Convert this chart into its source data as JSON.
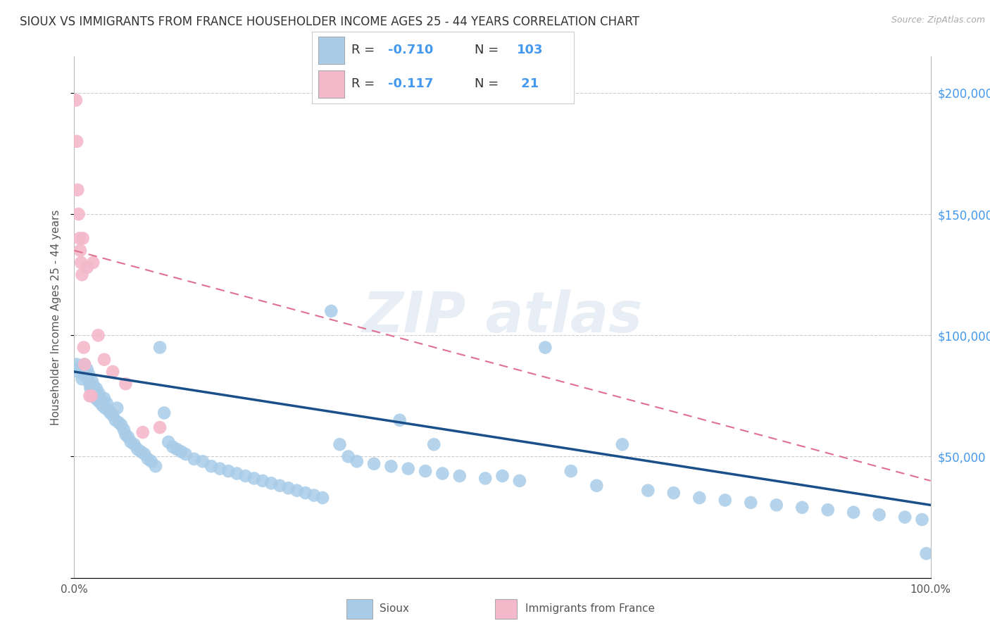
{
  "title": "SIOUX VS IMMIGRANTS FROM FRANCE HOUSEHOLDER INCOME AGES 25 - 44 YEARS CORRELATION CHART",
  "source": "Source: ZipAtlas.com",
  "ylabel": "Householder Income Ages 25 - 44 years",
  "xlim": [
    0.0,
    100.0
  ],
  "ylim": [
    0,
    215000
  ],
  "yticks": [
    0,
    50000,
    100000,
    150000,
    200000
  ],
  "ytick_labels": [
    "",
    "$50,000",
    "$100,000",
    "$150,000",
    "$200,000"
  ],
  "blue_scatter": "#a8cce8",
  "pink_scatter": "#f4b8cb",
  "blue_line": "#1a4f8a",
  "pink_line": "#e07090",
  "blue_legend": "#a8cce8",
  "pink_legend": "#f4b8cb",
  "watermark_color": "#e8eef5",
  "sioux_x": [
    0.3,
    0.5,
    0.7,
    0.9,
    1.0,
    1.1,
    1.2,
    1.3,
    1.4,
    1.5,
    1.6,
    1.7,
    1.8,
    1.9,
    2.0,
    2.1,
    2.2,
    2.3,
    2.4,
    2.5,
    2.6,
    2.7,
    2.8,
    2.9,
    3.0,
    3.1,
    3.2,
    3.3,
    3.5,
    3.6,
    3.8,
    4.0,
    4.2,
    4.5,
    4.8,
    5.0,
    5.2,
    5.5,
    5.8,
    6.0,
    6.3,
    6.6,
    7.0,
    7.4,
    7.8,
    8.2,
    8.6,
    9.0,
    9.5,
    10.0,
    10.5,
    11.0,
    11.5,
    12.0,
    12.5,
    13.0,
    14.0,
    15.0,
    16.0,
    17.0,
    18.0,
    19.0,
    20.0,
    21.0,
    22.0,
    23.0,
    24.0,
    25.0,
    26.0,
    27.0,
    28.0,
    29.0,
    30.0,
    31.0,
    32.0,
    33.0,
    35.0,
    37.0,
    39.0,
    41.0,
    43.0,
    45.0,
    48.0,
    50.0,
    52.0,
    55.0,
    58.0,
    61.0,
    64.0,
    67.0,
    70.0,
    73.0,
    76.0,
    79.0,
    82.0,
    85.0,
    88.0,
    91.0,
    94.0,
    97.0,
    99.0,
    99.5,
    38.0,
    42.0
  ],
  "sioux_y": [
    88000,
    85000,
    87000,
    82000,
    86000,
    84000,
    88000,
    85000,
    83000,
    86000,
    82000,
    84000,
    80000,
    78000,
    79000,
    81000,
    77000,
    79000,
    76000,
    74000,
    78000,
    75000,
    73000,
    76000,
    74000,
    72000,
    73000,
    71000,
    74000,
    70000,
    72000,
    69000,
    68000,
    67000,
    65000,
    70000,
    64000,
    63000,
    61000,
    59000,
    58000,
    56000,
    55000,
    53000,
    52000,
    51000,
    49000,
    48000,
    46000,
    95000,
    68000,
    56000,
    54000,
    53000,
    52000,
    51000,
    49000,
    48000,
    46000,
    45000,
    44000,
    43000,
    42000,
    41000,
    40000,
    39000,
    38000,
    37000,
    36000,
    35000,
    34000,
    33000,
    110000,
    55000,
    50000,
    48000,
    47000,
    46000,
    45000,
    44000,
    43000,
    42000,
    41000,
    42000,
    40000,
    95000,
    44000,
    38000,
    55000,
    36000,
    35000,
    33000,
    32000,
    31000,
    30000,
    29000,
    28000,
    27000,
    26000,
    25000,
    24000,
    10000,
    65000,
    55000
  ],
  "france_x": [
    0.2,
    0.3,
    0.4,
    0.5,
    0.6,
    0.7,
    0.8,
    0.9,
    1.0,
    1.1,
    1.2,
    1.5,
    1.8,
    2.2,
    2.8,
    3.5,
    4.5,
    6.0,
    8.0,
    10.0,
    2.0
  ],
  "france_y": [
    197000,
    180000,
    160000,
    150000,
    140000,
    135000,
    130000,
    125000,
    140000,
    95000,
    88000,
    128000,
    75000,
    130000,
    100000,
    90000,
    85000,
    80000,
    60000,
    62000,
    75000
  ]
}
